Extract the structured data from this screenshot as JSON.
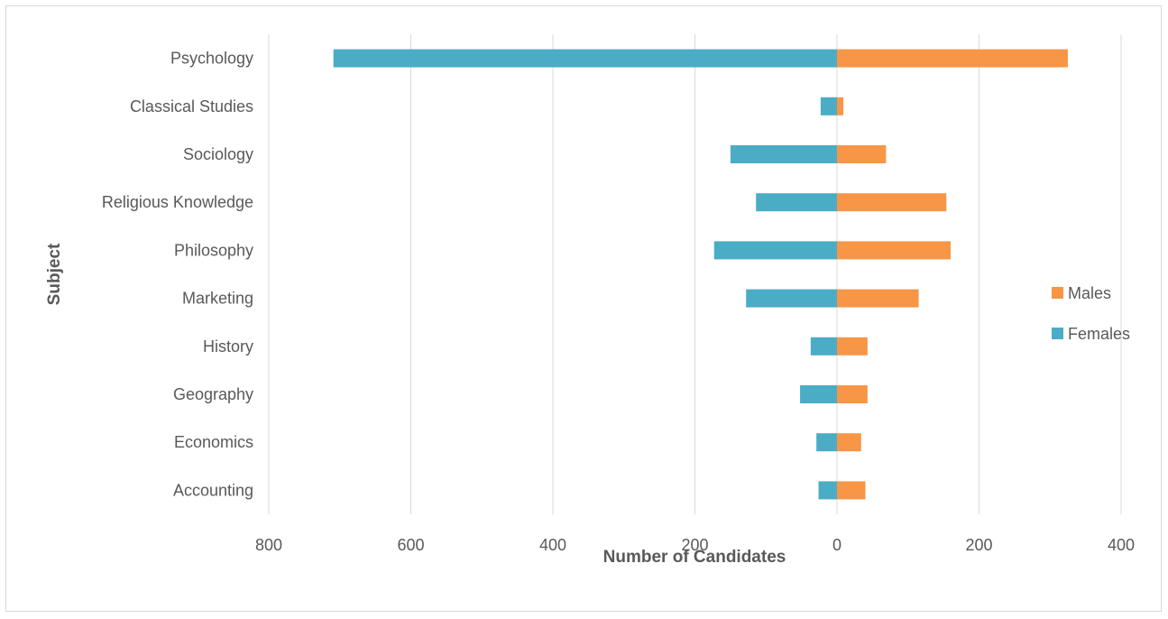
{
  "chart_data": {
    "type": "bar",
    "orientation": "horizontal-diverging",
    "xlabel": "Number of Candidates",
    "ylabel": "Subject",
    "xlim": [
      -800,
      400
    ],
    "xticks": [
      -800,
      -600,
      -400,
      -200,
      0,
      200,
      400
    ],
    "xtick_labels": [
      "800",
      "600",
      "400",
      "200",
      "0",
      "200",
      "400"
    ],
    "categories": [
      "Psychology",
      "Classical Studies",
      "Sociology",
      "Religious Knowledge",
      "Philosophy",
      "Marketing",
      "History",
      "Geography",
      "Economics",
      "Accounting"
    ],
    "series": [
      {
        "name": "Males",
        "color": "#F79646",
        "values": [
          325,
          9,
          69,
          154,
          160,
          115,
          43,
          43,
          34,
          40
        ]
      },
      {
        "name": "Females",
        "color": "#4BACC6",
        "values": [
          -709,
          -23,
          -150,
          -114,
          -173,
          -128,
          -37,
          -52,
          -29,
          -26
        ]
      }
    ],
    "legend_position": "right",
    "grid": true
  }
}
